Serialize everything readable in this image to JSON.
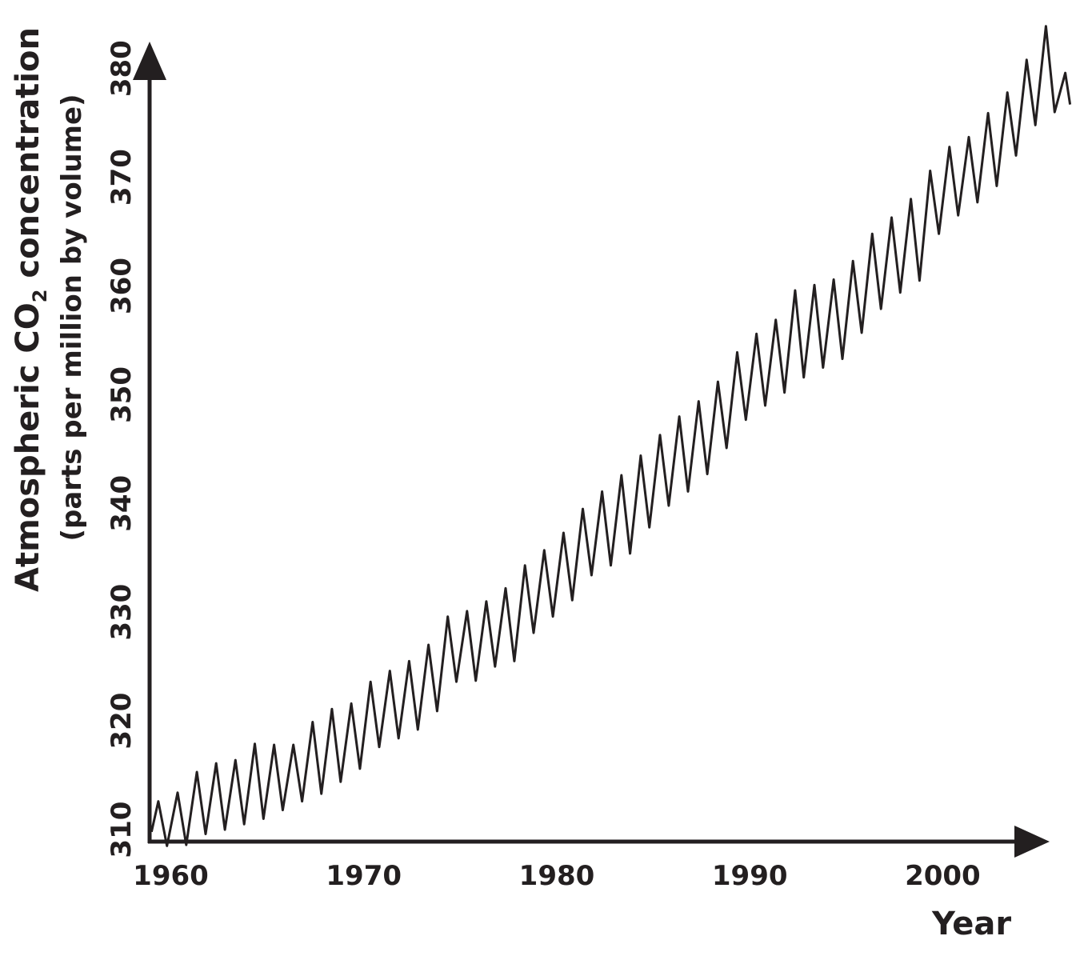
{
  "chart_data": {
    "type": "line",
    "title": "",
    "xlabel": "Year",
    "ylabel_line1_prefix": "Atmospheric CO",
    "ylabel_line1_subscript": "2",
    "ylabel_line1_suffix": " concentration",
    "ylabel_line2": "(parts per million by volume)",
    "xlim": [
      1958.9,
      2006.7
    ],
    "ylim": [
      308.9,
      384.1
    ],
    "x_ticks": [
      1960,
      1970,
      1980,
      1990,
      2000
    ],
    "x_tick_labels": [
      "1960",
      "1970",
      "1980",
      "1990",
      "2000"
    ],
    "y_ticks": [
      310,
      320,
      330,
      340,
      350,
      360,
      370,
      380
    ],
    "y_tick_labels": [
      "310",
      "320",
      "330",
      "340",
      "350",
      "360",
      "370",
      "380"
    ],
    "grid": false,
    "legend": "none",
    "colors": {
      "line": "#231f20",
      "axis": "#231f20",
      "background": "#ffffff"
    },
    "series": [
      {
        "x": [
          1959.0,
          1959.35,
          1959.8,
          1960.35,
          1960.8,
          1961.35,
          1961.8,
          1962.35,
          1962.8,
          1963.35,
          1963.8,
          1964.35,
          1964.8,
          1965.35,
          1965.8,
          1966.35,
          1966.8,
          1967.35,
          1967.8,
          1968.35,
          1968.8,
          1969.35,
          1969.8,
          1970.35,
          1970.8,
          1971.35,
          1971.8,
          1972.35,
          1972.8,
          1973.35,
          1973.8,
          1974.35,
          1974.8,
          1975.35,
          1975.8,
          1976.35,
          1976.8,
          1977.35,
          1977.8,
          1978.35,
          1978.8,
          1979.35,
          1979.8,
          1980.35,
          1980.8,
          1981.35,
          1981.8,
          1982.35,
          1982.8,
          1983.35,
          1983.8,
          1984.35,
          1984.8,
          1985.35,
          1985.8,
          1986.35,
          1986.8,
          1987.35,
          1987.8,
          1988.35,
          1988.8,
          1989.35,
          1989.8,
          1990.35,
          1990.8,
          1991.35,
          1991.8,
          1992.35,
          1992.8,
          1993.35,
          1993.8,
          1994.35,
          1994.8,
          1995.35,
          1995.8,
          1996.35,
          1996.8,
          1997.35,
          1997.8,
          1998.35,
          1998.8,
          1999.35,
          1999.8,
          2000.35,
          2000.8,
          2001.35,
          2001.8,
          2002.35,
          2002.8,
          2003.35,
          2003.8,
          2004.35,
          2004.8,
          2005.35,
          2005.8,
          2006.35,
          2006.6
        ],
        "values": [
          309.8,
          312.6,
          308.5,
          313.4,
          308.6,
          315.3,
          309.6,
          316.1,
          310.0,
          316.4,
          310.5,
          317.9,
          311.0,
          317.8,
          311.8,
          317.8,
          312.6,
          319.9,
          313.3,
          321.1,
          314.4,
          321.6,
          315.6,
          323.6,
          317.6,
          324.6,
          318.4,
          325.5,
          319.2,
          327.0,
          320.9,
          329.6,
          323.6,
          330.1,
          323.7,
          331.0,
          325.0,
          332.2,
          325.5,
          334.3,
          328.1,
          335.7,
          329.6,
          337.3,
          331.1,
          339.5,
          333.4,
          341.1,
          334.3,
          342.6,
          335.4,
          344.4,
          337.8,
          346.3,
          339.8,
          348.0,
          341.1,
          349.4,
          342.7,
          351.2,
          345.1,
          353.9,
          347.7,
          355.6,
          349.0,
          356.9,
          350.2,
          359.6,
          351.6,
          360.1,
          352.5,
          360.6,
          353.3,
          362.3,
          355.7,
          364.8,
          357.9,
          366.3,
          359.4,
          368.0,
          360.5,
          370.6,
          364.8,
          372.8,
          366.5,
          373.7,
          367.7,
          375.9,
          369.2,
          377.8,
          372.0,
          380.8,
          374.8,
          383.9,
          376.0,
          379.6,
          376.7
        ]
      }
    ]
  }
}
